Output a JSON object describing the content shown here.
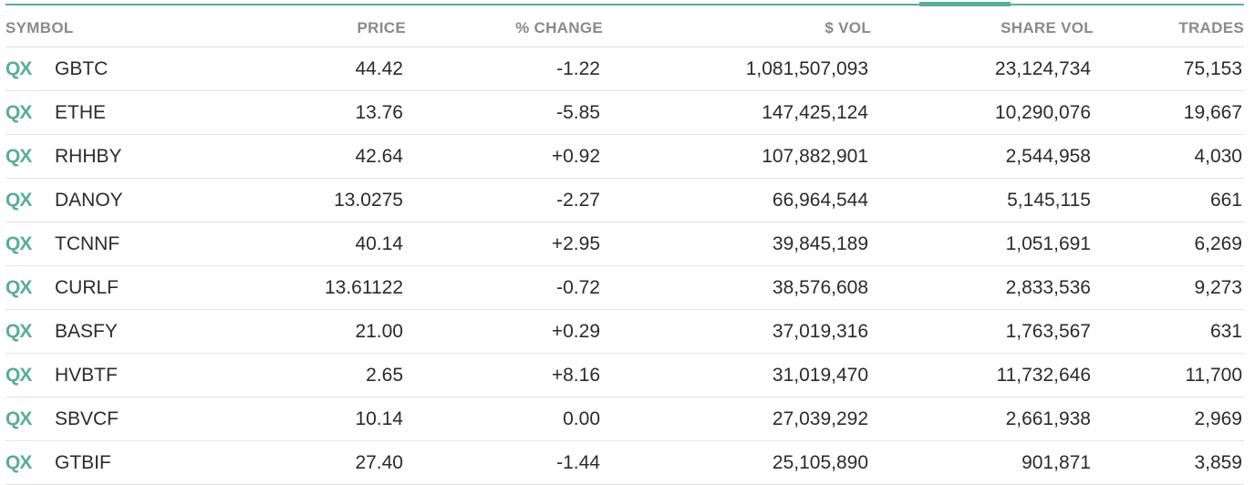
{
  "accent_color": "#5aad98",
  "columns": {
    "symbol": "SYMBOL",
    "price": "PRICE",
    "change": "% CHANGE",
    "dollar_vol": "$ VOL",
    "share_vol": "SHARE VOL",
    "trades": "TRADES"
  },
  "rows": [
    {
      "badge": "QX",
      "symbol": "GBTC",
      "price": "44.42",
      "change": "-1.22",
      "dollar_vol": "1,081,507,093",
      "share_vol": "23,124,734",
      "trades": "75,153"
    },
    {
      "badge": "QX",
      "symbol": "ETHE",
      "price": "13.76",
      "change": "-5.85",
      "dollar_vol": "147,425,124",
      "share_vol": "10,290,076",
      "trades": "19,667"
    },
    {
      "badge": "QX",
      "symbol": "RHHBY",
      "price": "42.64",
      "change": "+0.92",
      "dollar_vol": "107,882,901",
      "share_vol": "2,544,958",
      "trades": "4,030"
    },
    {
      "badge": "QX",
      "symbol": "DANOY",
      "price": "13.0275",
      "change": "-2.27",
      "dollar_vol": "66,964,544",
      "share_vol": "5,145,115",
      "trades": "661"
    },
    {
      "badge": "QX",
      "symbol": "TCNNF",
      "price": "40.14",
      "change": "+2.95",
      "dollar_vol": "39,845,189",
      "share_vol": "1,051,691",
      "trades": "6,269"
    },
    {
      "badge": "QX",
      "symbol": "CURLF",
      "price": "13.61122",
      "change": "-0.72",
      "dollar_vol": "38,576,608",
      "share_vol": "2,833,536",
      "trades": "9,273"
    },
    {
      "badge": "QX",
      "symbol": "BASFY",
      "price": "21.00",
      "change": "+0.29",
      "dollar_vol": "37,019,316",
      "share_vol": "1,763,567",
      "trades": "631"
    },
    {
      "badge": "QX",
      "symbol": "HVBTF",
      "price": "2.65",
      "change": "+8.16",
      "dollar_vol": "31,019,470",
      "share_vol": "11,732,646",
      "trades": "11,700"
    },
    {
      "badge": "QX",
      "symbol": "SBVCF",
      "price": "10.14",
      "change": "0.00",
      "dollar_vol": "27,039,292",
      "share_vol": "2,661,938",
      "trades": "2,969"
    },
    {
      "badge": "QX",
      "symbol": "GTBIF",
      "price": "27.40",
      "change": "-1.44",
      "dollar_vol": "25,105,890",
      "share_vol": "901,871",
      "trades": "3,859"
    }
  ]
}
